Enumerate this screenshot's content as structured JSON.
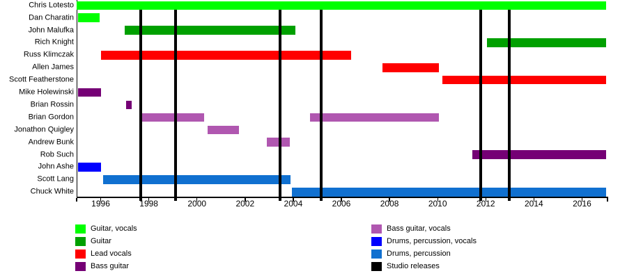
{
  "chart_data": {
    "type": "bar",
    "subtype": "gantt-band-member-timeline",
    "title": "",
    "xlabel": "",
    "ylabel": "",
    "grid": false,
    "legend_position": "bottom",
    "xlim": [
      1995,
      2017
    ],
    "x_ticks": [
      1996,
      1998,
      2000,
      2002,
      2004,
      2006,
      2008,
      2010,
      2012,
      2014,
      2016
    ],
    "colors": {
      "guitar_vocals": "#00FF00",
      "guitar": "#00A000",
      "lead_vocals": "#FF0000",
      "bass_guitar": "#750075",
      "bass_guitar_vocals": "#B057B0",
      "drums_percussion_vocals": "#0000FF",
      "drums_percussion": "#1070D0",
      "studio_releases": "#000000"
    },
    "members": [
      {
        "name": "Chris Lotesto",
        "role": "guitar_vocals",
        "periods": [
          [
            1995.0,
            2017.0
          ]
        ]
      },
      {
        "name": "Dan Charatin",
        "role": "guitar_vocals",
        "periods": [
          [
            1995.05,
            1995.95
          ]
        ]
      },
      {
        "name": "John Malufka",
        "role": "guitar",
        "periods": [
          [
            1997.0,
            2004.1
          ]
        ]
      },
      {
        "name": "Rich Knight",
        "role": "guitar",
        "periods": [
          [
            2012.05,
            2017.0
          ]
        ]
      },
      {
        "name": "Russ Klimczak",
        "role": "lead_vocals",
        "periods": [
          [
            1996.0,
            2006.4
          ]
        ]
      },
      {
        "name": "Allen James",
        "role": "lead_vocals",
        "periods": [
          [
            2007.7,
            2010.05
          ]
        ]
      },
      {
        "name": "Scott Featherstone",
        "role": "lead_vocals",
        "periods": [
          [
            2010.2,
            2017.0
          ]
        ]
      },
      {
        "name": "Mike Holewinski",
        "role": "bass_guitar",
        "periods": [
          [
            1995.05,
            1996.0
          ]
        ]
      },
      {
        "name": "Brian Rossin",
        "role": "bass_guitar",
        "periods": [
          [
            1997.05,
            1997.3
          ]
        ]
      },
      {
        "name": "Brian Gordon",
        "role": "bass_guitar_vocals",
        "periods": [
          [
            1997.7,
            2000.3
          ],
          [
            2004.7,
            2010.05
          ]
        ]
      },
      {
        "name": "Jonathon Quigley",
        "role": "bass_guitar_vocals",
        "periods": [
          [
            2000.45,
            2001.75
          ]
        ]
      },
      {
        "name": "Andrew Bunk",
        "role": "bass_guitar_vocals",
        "periods": [
          [
            2002.9,
            2003.85
          ]
        ]
      },
      {
        "name": "Rob Such",
        "role": "bass_guitar",
        "periods": [
          [
            2011.45,
            2017.0
          ]
        ]
      },
      {
        "name": "John Ashe",
        "role": "drums_percussion_vocals",
        "periods": [
          [
            1995.05,
            1996.0
          ]
        ]
      },
      {
        "name": "Scott Lang",
        "role": "drums_percussion",
        "periods": [
          [
            1996.1,
            2003.9
          ]
        ]
      },
      {
        "name": "Chuck White",
        "role": "drums_percussion",
        "periods": [
          [
            2003.95,
            2017.0
          ]
        ]
      }
    ],
    "studio_releases": [
      1997.66,
      1999.11,
      2003.45,
      2005.17,
      2011.79,
      2012.97
    ],
    "legend": {
      "left": [
        {
          "label": "Guitar, vocals",
          "color_key": "guitar_vocals"
        },
        {
          "label": "Guitar",
          "color_key": "guitar"
        },
        {
          "label": "Lead vocals",
          "color_key": "lead_vocals"
        },
        {
          "label": "Bass guitar",
          "color_key": "bass_guitar"
        }
      ],
      "right": [
        {
          "label": "Bass guitar, vocals",
          "color_key": "bass_guitar_vocals"
        },
        {
          "label": "Drums, percussion, vocals",
          "color_key": "drums_percussion_vocals"
        },
        {
          "label": "Drums, percussion",
          "color_key": "drums_percussion"
        },
        {
          "label": "Studio releases",
          "color_key": "studio_releases"
        }
      ]
    }
  }
}
